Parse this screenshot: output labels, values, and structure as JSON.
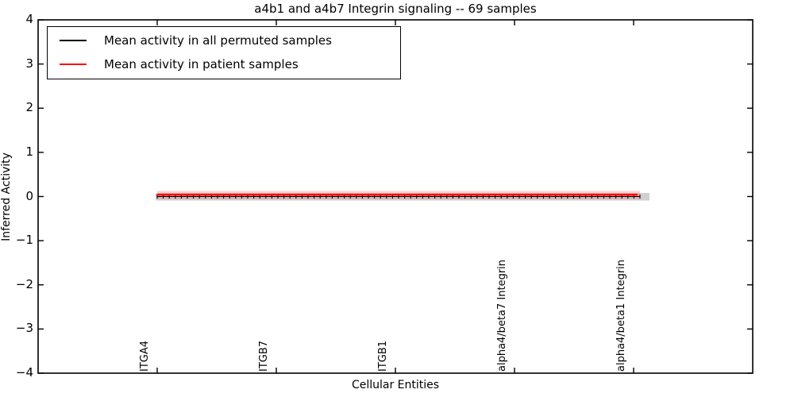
{
  "chart_data": {
    "type": "line",
    "title": "a4b1 and a4b7 Integrin signaling -- 69 samples",
    "xlabel": "Cellular Entities",
    "ylabel": "Inferred Activity",
    "ylim": [
      -4,
      4
    ],
    "xlim": [
      0,
      6
    ],
    "ytick_values": [
      4,
      3,
      2,
      1,
      0,
      -1,
      -2,
      -3,
      -4
    ],
    "ytick_labels": [
      "4",
      "3",
      "2",
      "1",
      "0",
      "−1",
      "−2",
      "−3",
      "−4"
    ],
    "categories": [
      "ITGA4",
      "ITGB7",
      "ITGB1",
      "alpha4/beta7 Integrin",
      "alpha4/beta1 Integrin"
    ],
    "category_positions": [
      1,
      2,
      3,
      4,
      5
    ],
    "grid": false,
    "legend_position": "upper left",
    "frame_color": "#000000",
    "series": [
      {
        "name": "Mean activity in all permuted samples",
        "color": "#000000",
        "marker": "+",
        "line_style": "solid",
        "values": [
          0.0,
          0.0,
          0.0,
          0.0,
          0.0
        ],
        "band_upper": 0.08,
        "band_lower": -0.09,
        "band_color": "rgba(110,110,110,0.32)"
      },
      {
        "name": "Mean activity in patient samples",
        "color": "#ff0000",
        "marker": "none",
        "line_style": "solid",
        "values": [
          0.04,
          0.04,
          0.04,
          0.04,
          0.04
        ],
        "band_upper": 0.125,
        "band_lower": -0.055,
        "band_color": "rgba(255,60,60,0.25)"
      }
    ]
  }
}
